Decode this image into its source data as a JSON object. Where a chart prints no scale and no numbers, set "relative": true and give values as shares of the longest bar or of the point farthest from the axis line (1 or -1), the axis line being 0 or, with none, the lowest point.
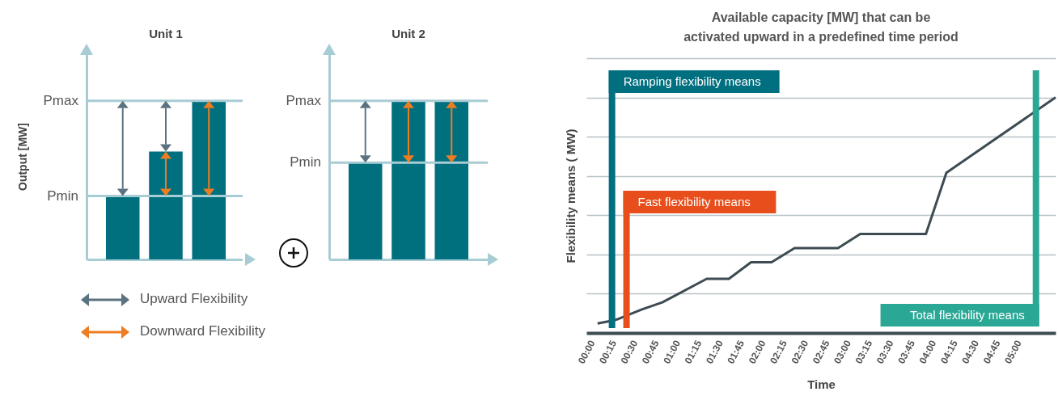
{
  "chart_data": [
    {
      "type": "bar",
      "title": "Unit 1",
      "ylabel": "Output [MW]",
      "categories": [
        null,
        null,
        null
      ],
      "values": [
        0.4,
        0.68,
        1
      ],
      "color": "#00707f",
      "relative": true,
      "ref_lines": [
        {
          "axis": "y",
          "value": 0.4,
          "label": "Pmin",
          "color": "#a8ccd4"
        },
        {
          "axis": "y",
          "value": 1,
          "label": "Pmax",
          "color": "#a8ccd4"
        }
      ],
      "annotations": [
        "Upward Flexibility",
        "Downward Flexibility"
      ]
    },
    {
      "type": "bar",
      "title": "Unit 2",
      "categories": [
        null,
        null,
        null
      ],
      "values": [
        0.61,
        1,
        1
      ],
      "color": "#00707f",
      "relative": true,
      "ref_lines": [
        {
          "axis": "y",
          "value": 0.61,
          "label": "Pmin",
          "color": "#a8ccd4"
        },
        {
          "axis": "y",
          "value": 1,
          "label": "Pmax",
          "color": "#a8ccd4"
        }
      ]
    },
    {
      "type": "line",
      "title": "Available capacity [MW] that can be activated upward in a predefined time period",
      "xlabel": "Time",
      "ylabel": "Flexibility means ( MW)",
      "relative": true,
      "grid": "y",
      "x": [
        0.06,
        0.27,
        0.58,
        0.82,
        1.34,
        1.6,
        1.86,
        2.1,
        2.37,
        2.88,
        3.14,
        3.91,
        4.15,
        5.43
      ],
      "series": [
        {
          "color": "#3d4b52",
          "values": [
            0.04,
            0.055,
            0.1,
            0.13,
            0.23,
            0.23,
            0.3,
            0.3,
            0.36,
            0.36,
            0.42,
            0.42,
            0.68,
            1
          ]
        }
      ],
      "xlim": [
        -0.07,
        5.43
      ],
      "xticks": [
        {
          "value": 0,
          "label": "00:00"
        },
        {
          "value": 0.25,
          "label": "00:15"
        },
        {
          "value": 0.5,
          "label": "00:30"
        },
        {
          "value": 0.75,
          "label": "00:45"
        },
        {
          "value": 1,
          "label": "01:00"
        },
        {
          "value": 1.25,
          "label": "01:15"
        },
        {
          "value": 1.5,
          "label": "01:30"
        },
        {
          "value": 1.75,
          "label": "01:45"
        },
        {
          "value": 2,
          "label": "02:00"
        },
        {
          "value": 2.25,
          "label": "02:15"
        },
        {
          "value": 2.5,
          "label": "02:30"
        },
        {
          "value": 2.75,
          "label": "02:45"
        },
        {
          "value": 3,
          "label": "03:00"
        },
        {
          "value": 3.25,
          "label": "03:15"
        },
        {
          "value": 3.5,
          "label": "03:30"
        },
        {
          "value": 3.75,
          "label": "03:45"
        },
        {
          "value": 4,
          "label": "04:00"
        },
        {
          "value": 4.25,
          "label": "04:15"
        },
        {
          "value": 4.5,
          "label": "04:30"
        },
        {
          "value": 4.75,
          "label": "04:45"
        },
        {
          "value": 5,
          "label": "05:00"
        }
      ],
      "ref_lines": [
        {
          "axis": "x",
          "value": 0.23,
          "label": "Ramping flexibility means",
          "color": "#006f7f"
        },
        {
          "axis": "x",
          "value": 0.4,
          "label": "Fast flexibility means",
          "color": "#e84e1b"
        },
        {
          "axis": "x",
          "value": 5.2,
          "label": "Total flexibility means",
          "color": "#2aa895"
        }
      ]
    }
  ]
}
